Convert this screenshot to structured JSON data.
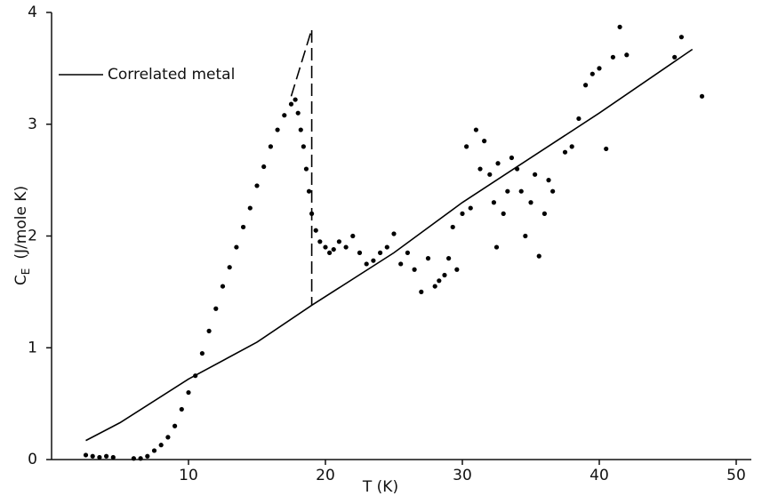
{
  "chart_data": {
    "type": "scatter",
    "xlabel": "T (K)",
    "ylabel": {
      "symbol": "C",
      "subscript": "E",
      "unit": "(J/mole K)"
    },
    "xlim": [
      0,
      50
    ],
    "ylim": [
      0,
      4
    ],
    "xticks": [
      10,
      20,
      30,
      40,
      50
    ],
    "yticks": [
      0,
      1,
      2,
      3,
      4
    ],
    "legend": "upper left",
    "series": [
      {
        "name": "Correlated metal",
        "kind": "line",
        "color": "#000000",
        "x": [
          2.5,
          5,
          10,
          15,
          19,
          25,
          30,
          35,
          40,
          46.8
        ],
        "values": [
          0.17,
          0.33,
          0.72,
          1.05,
          1.38,
          1.85,
          2.3,
          2.7,
          3.1,
          3.67
        ]
      },
      {
        "name": null,
        "kind": "dashed",
        "color": "#000000",
        "x": [
          17.5,
          19,
          19
        ],
        "values": [
          3.25,
          3.85,
          1.38
        ]
      },
      {
        "name": null,
        "kind": "points",
        "color": "#000000",
        "x": [
          2.5,
          3,
          3.5,
          4,
          4.5,
          6,
          6.5,
          7,
          7.5,
          8,
          8.5,
          9,
          9.5,
          10,
          10.5,
          11,
          11.5,
          12,
          12.5,
          13,
          13.5,
          14,
          14.5,
          15,
          15.5,
          16,
          16.5,
          17,
          17.5,
          17.8,
          18,
          18.2,
          18.4,
          18.6,
          18.8,
          19,
          19.3,
          19.6,
          20,
          20.3,
          20.6,
          21,
          21.5,
          22,
          22.5,
          23,
          23.5,
          24,
          24.5,
          25,
          25.5,
          26,
          26.5,
          27,
          27.5,
          28,
          28.3,
          28.7,
          29,
          29.3,
          29.6,
          30,
          30.3,
          30.6,
          31,
          31.3,
          31.6,
          32,
          32.3,
          32.5,
          32.6,
          33,
          33.3,
          33.6,
          34,
          34.3,
          34.6,
          35,
          35.3,
          35.6,
          36,
          36.3,
          36.6,
          37.5,
          38,
          38.5,
          39,
          39.5,
          40,
          40.5,
          41,
          41.5,
          42,
          45.5,
          46,
          47.5
        ],
        "values": [
          0.04,
          0.03,
          0.02,
          0.03,
          0.02,
          0.01,
          0.01,
          0.03,
          0.08,
          0.13,
          0.2,
          0.3,
          0.45,
          0.6,
          0.75,
          0.95,
          1.15,
          1.35,
          1.55,
          1.72,
          1.9,
          2.08,
          2.25,
          2.45,
          2.62,
          2.8,
          2.95,
          3.08,
          3.18,
          3.22,
          3.1,
          2.95,
          2.8,
          2.6,
          2.4,
          2.2,
          2.05,
          1.95,
          1.9,
          1.85,
          1.88,
          1.95,
          1.9,
          2.0,
          1.85,
          1.75,
          1.78,
          1.85,
          1.9,
          2.02,
          1.75,
          1.85,
          1.7,
          1.5,
          1.8,
          1.55,
          1.6,
          1.65,
          1.8,
          2.08,
          1.7,
          2.2,
          2.8,
          2.25,
          2.95,
          2.6,
          2.85,
          2.55,
          2.3,
          1.9,
          2.65,
          2.2,
          2.4,
          2.7,
          2.6,
          2.4,
          2.0,
          2.3,
          2.55,
          1.82,
          2.2,
          2.5,
          2.4,
          2.75,
          2.8,
          3.05,
          3.35,
          3.45,
          3.5,
          2.78,
          3.6,
          3.87,
          3.62,
          3.6,
          3.78,
          3.25
        ]
      }
    ]
  }
}
